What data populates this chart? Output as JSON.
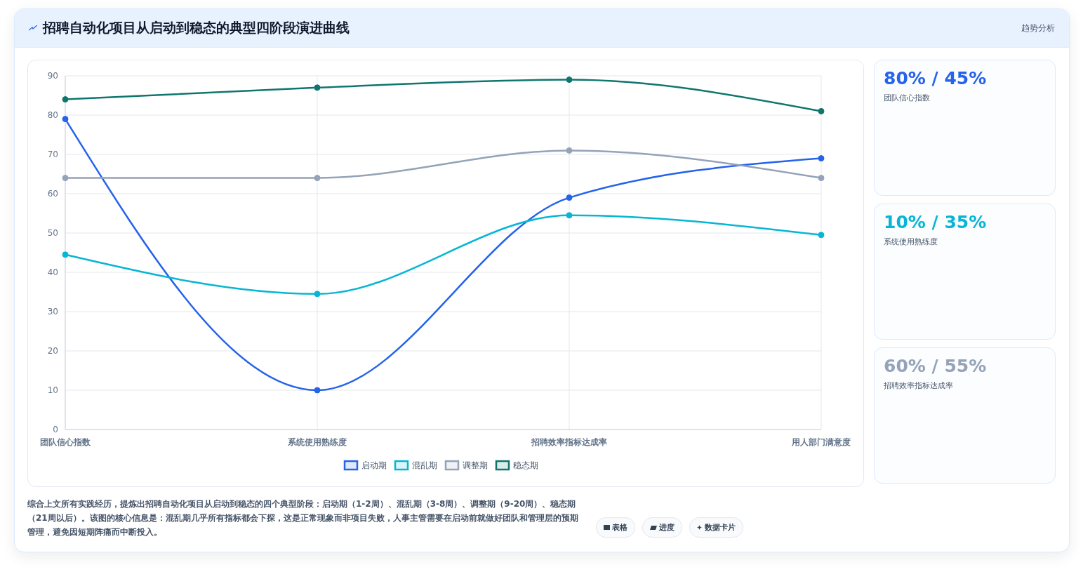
{
  "chart_data": [
    {
      "type": "line",
      "title": "招聘自动化项目从启动到稳态的典型四阶段演进曲线",
      "categories": [
        "团队信心指数",
        "系统使用熟练度",
        "招聘效率指标达成率",
        "用人部门满意度"
      ],
      "series": [
        {
          "name": "启动期",
          "color": "#2563eb",
          "values": [
            79,
            10,
            59,
            69
          ]
        },
        {
          "name": "混乱期",
          "color": "#06b6d4",
          "values": [
            44.5,
            34.5,
            54.5,
            49.5
          ]
        },
        {
          "name": "调整期",
          "color": "#94a3b8",
          "values": [
            64,
            64,
            71,
            64
          ]
        },
        {
          "name": "稳态期",
          "color": "#0f766e",
          "values": [
            84,
            87,
            89,
            81
          ]
        }
      ],
      "ylim": [
        0,
        90
      ],
      "yticks": [
        0,
        10,
        20,
        30,
        40,
        50,
        60,
        70,
        80,
        90
      ],
      "grid": true,
      "legend": "bottom",
      "marker": "circle",
      "annotations": [
        "综合上文所有实践经历，提炼出招聘自动化项目从启动到稳态的四个典型阶段：启动期（1-2周）、混乱期（3-8周）、调整期（9-20周）、稳态期（21周以后）。该图的核心信息是：混乱期几乎所有指标都会下探，这是正常现象而非项目失败，人事主管需要在启动前就做好团队和管理层的预期管理，避免因短期阵痛而中断投入。",
        "表格",
        "进度",
        "数据卡片"
      ]
    },
    {
      "type": "other",
      "title": "趋势分析",
      "colors": [
        "#2563eb",
        "#06b6d4",
        "#94a3b8"
      ],
      "annotations": [
        "80% / 45%",
        "团队信心指数",
        "10% / 35%",
        "系统使用熟练度",
        "60% / 55%",
        "招聘效率指标达成率"
      ]
    }
  ]
}
